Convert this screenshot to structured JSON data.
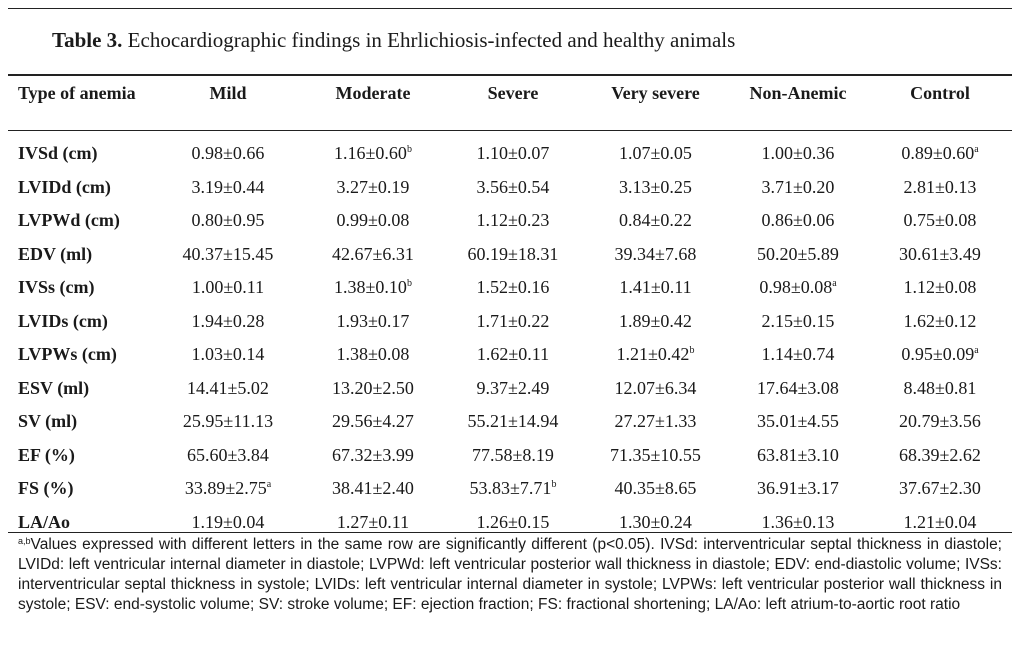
{
  "caption": {
    "label": "Table 3.",
    "text": "Echocardiographic findings in Ehrlichiosis-infected and healthy animals"
  },
  "table": {
    "header": {
      "row_label": "Type of anemia",
      "columns": [
        "Mild",
        "Moderate",
        "Severe",
        "Very severe",
        "Non-Anemic",
        "Control"
      ]
    },
    "rows": [
      {
        "label": "IVSd (cm)",
        "cells": [
          {
            "v": "0.98±0.66"
          },
          {
            "v": "1.16±0.60",
            "sup": "b"
          },
          {
            "v": "1.10±0.07"
          },
          {
            "v": "1.07±0.05"
          },
          {
            "v": "1.00±0.36"
          },
          {
            "v": "0.89±0.60",
            "sup": "a"
          }
        ]
      },
      {
        "label": "LVIDd (cm)",
        "cells": [
          {
            "v": "3.19±0.44"
          },
          {
            "v": "3.27±0.19"
          },
          {
            "v": "3.56±0.54"
          },
          {
            "v": "3.13±0.25"
          },
          {
            "v": "3.71±0.20"
          },
          {
            "v": "2.81±0.13"
          }
        ]
      },
      {
        "label": "LVPWd (cm)",
        "cells": [
          {
            "v": "0.80±0.95"
          },
          {
            "v": "0.99±0.08"
          },
          {
            "v": "1.12±0.23"
          },
          {
            "v": "0.84±0.22"
          },
          {
            "v": "0.86±0.06"
          },
          {
            "v": "0.75±0.08"
          }
        ]
      },
      {
        "label": "EDV (ml)",
        "cells": [
          {
            "v": "40.37±15.45"
          },
          {
            "v": "42.67±6.31"
          },
          {
            "v": "60.19±18.31"
          },
          {
            "v": "39.34±7.68"
          },
          {
            "v": "50.20±5.89"
          },
          {
            "v": "30.61±3.49"
          }
        ]
      },
      {
        "label": "IVSs (cm)",
        "cells": [
          {
            "v": "1.00±0.11"
          },
          {
            "v": "1.38±0.10",
            "sup": "b"
          },
          {
            "v": "1.52±0.16"
          },
          {
            "v": "1.41±0.11"
          },
          {
            "v": "0.98±0.08",
            "sup": "a"
          },
          {
            "v": "1.12±0.08"
          }
        ]
      },
      {
        "label": "LVIDs (cm)",
        "cells": [
          {
            "v": "1.94±0.28"
          },
          {
            "v": "1.93±0.17"
          },
          {
            "v": "1.71±0.22"
          },
          {
            "v": "1.89±0.42"
          },
          {
            "v": "2.15±0.15"
          },
          {
            "v": "1.62±0.12"
          }
        ]
      },
      {
        "label": "LVPWs (cm)",
        "cells": [
          {
            "v": "1.03±0.14"
          },
          {
            "v": "1.38±0.08"
          },
          {
            "v": "1.62±0.11"
          },
          {
            "v": "1.21±0.42",
            "sup": "b"
          },
          {
            "v": "1.14±0.74"
          },
          {
            "v": "0.95±0.09",
            "sup": "a"
          }
        ]
      },
      {
        "label": "ESV (ml)",
        "cells": [
          {
            "v": "14.41±5.02"
          },
          {
            "v": "13.20±2.50"
          },
          {
            "v": "9.37±2.49"
          },
          {
            "v": "12.07±6.34"
          },
          {
            "v": "17.64±3.08"
          },
          {
            "v": "8.48±0.81"
          }
        ]
      },
      {
        "label": "SV (ml)",
        "cells": [
          {
            "v": "25.95±11.13"
          },
          {
            "v": "29.56±4.27"
          },
          {
            "v": "55.21±14.94"
          },
          {
            "v": "27.27±1.33"
          },
          {
            "v": "35.01±4.55"
          },
          {
            "v": "20.79±3.56"
          }
        ]
      },
      {
        "label": "EF (%)",
        "cells": [
          {
            "v": "65.60±3.84"
          },
          {
            "v": "67.32±3.99"
          },
          {
            "v": "77.58±8.19"
          },
          {
            "v": "71.35±10.55"
          },
          {
            "v": "63.81±3.10"
          },
          {
            "v": "68.39±2.62"
          }
        ]
      },
      {
        "label": "FS (%)",
        "cells": [
          {
            "v": "33.89±2.75",
            "sup": "a"
          },
          {
            "v": "38.41±2.40"
          },
          {
            "v": "53.83±7.71",
            "sup": "b"
          },
          {
            "v": "40.35±8.65"
          },
          {
            "v": "36.91±3.17"
          },
          {
            "v": "37.67±2.30"
          }
        ]
      },
      {
        "label": "LA/Ao",
        "cells": [
          {
            "v": "1.19±0.04"
          },
          {
            "v": "1.27±0.11"
          },
          {
            "v": "1.26±0.15"
          },
          {
            "v": "1.30±0.24"
          },
          {
            "v": "1.36±0.13"
          },
          {
            "v": "1.21±0.04"
          }
        ]
      }
    ]
  },
  "footnote": {
    "sup": "a,b",
    "text": "Values expressed with different letters in the same row are significantly different (p<0.05). IVSd: interventricular septal thickness in diastole; LVIDd: left ventricular internal diameter in diastole; LVPWd: left ventricular posterior wall thickness in diastole; EDV: end-diastolic volume; IVSs: interventricular septal thickness in systole; LVIDs: left ventricular internal diameter in systole; LVPWs: left ventricular posterior wall thickness in systole; ESV: end-systolic volume; SV: stroke volume; EF: ejection fraction; FS: fractional shortening; LA/Ao: left atrium-to-aortic root ratio"
  }
}
